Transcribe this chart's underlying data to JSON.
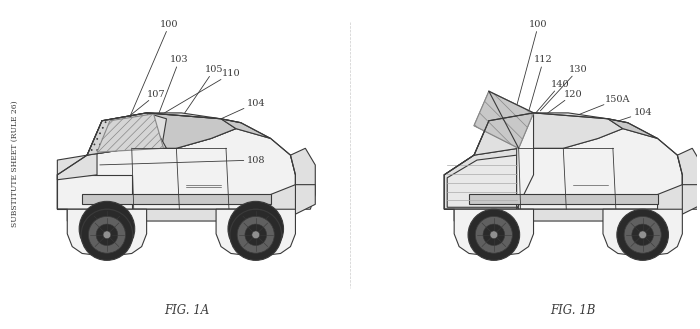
{
  "bg_color": "#ffffff",
  "fig_width": 7.0,
  "fig_height": 3.29,
  "dpi": 100,
  "side_text": "SUBSTITUTE SHEET (RULE 26)",
  "fig1a_label": "FIG. 1A",
  "fig1b_label": "FIG. 1B",
  "line_color": "#3a3a3a",
  "face_light": "#f2f2f2",
  "face_mid": "#e0e0e0",
  "face_dark": "#c8c8c8",
  "face_darker": "#b8b8b8",
  "hatch_face": "#d5d5d5",
  "wheel_dark": "#2a2a2a",
  "wheel_mid": "#606060",
  "wheel_light": "#909090"
}
